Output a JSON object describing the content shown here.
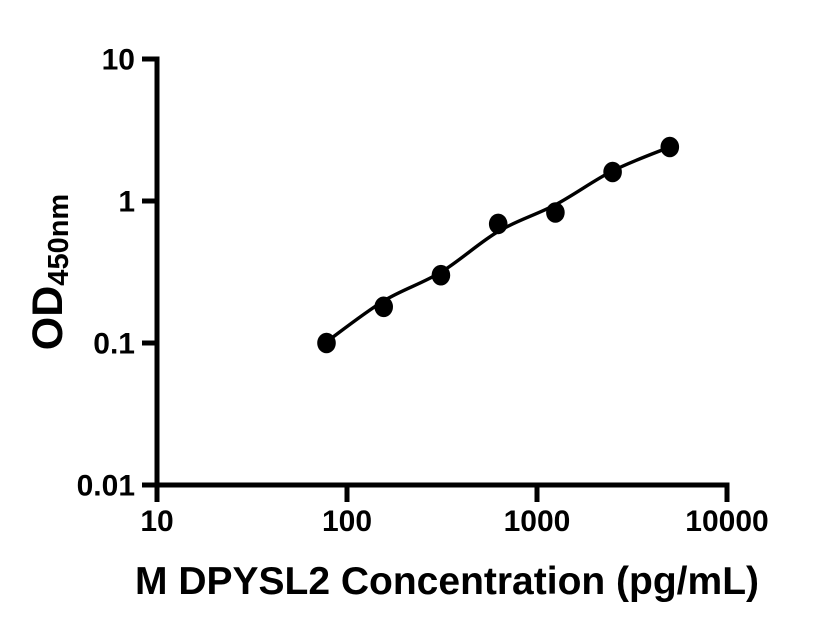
{
  "chart_data": {
    "type": "scatter",
    "title": "",
    "xlabel": "M DPYSL2 Concentration (pg/mL)",
    "ylabel_main": "OD",
    "ylabel_sub": "450nm",
    "x_scale": "log",
    "y_scale": "log",
    "xlim": [
      10,
      10000
    ],
    "ylim": [
      0.01,
      10
    ],
    "grid": false,
    "legend": "none",
    "x_ticks": [
      {
        "value": 10,
        "label": "10"
      },
      {
        "value": 100,
        "label": "100"
      },
      {
        "value": 1000,
        "label": "1000"
      },
      {
        "value": 10000,
        "label": "10000"
      }
    ],
    "y_ticks": [
      {
        "value": 10,
        "label": "10"
      },
      {
        "value": 1,
        "label": "1"
      },
      {
        "value": 0.1,
        "label": "0.1"
      },
      {
        "value": 0.01,
        "label": "0.01"
      }
    ],
    "points": [
      {
        "x": 78,
        "y": 0.1
      },
      {
        "x": 156,
        "y": 0.18
      },
      {
        "x": 312,
        "y": 0.3
      },
      {
        "x": 625,
        "y": 0.69
      },
      {
        "x": 1250,
        "y": 0.83
      },
      {
        "x": 2500,
        "y": 1.6
      },
      {
        "x": 5000,
        "y": 2.4
      }
    ],
    "fit_curve": [
      {
        "x": 78,
        "y": 0.102
      },
      {
        "x": 156,
        "y": 0.198
      },
      {
        "x": 312,
        "y": 0.315
      },
      {
        "x": 625,
        "y": 0.61
      },
      {
        "x": 1250,
        "y": 0.94
      },
      {
        "x": 2500,
        "y": 1.63
      },
      {
        "x": 5000,
        "y": 2.4
      }
    ],
    "marker_color": "#000000",
    "line_color": "#000000",
    "axis_color": "#000000",
    "background_color": "#ffffff"
  }
}
